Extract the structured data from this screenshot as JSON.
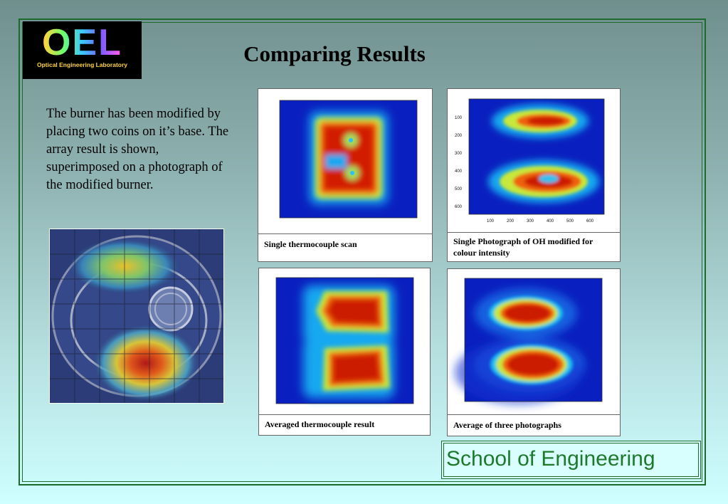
{
  "logo": {
    "word": "OEL",
    "subtitle": "Optical Engineering Laboratory"
  },
  "title": "Comparing Results",
  "intro": "The burner has been modified by placing two coins on it’s base. The array result is shown, superimposed on a photograph of the modified burner.",
  "figures": {
    "scan": {
      "caption": "Single thermocouple scan"
    },
    "photo": {
      "caption": "Single Photograph of OH modified for colour intensity",
      "y_ticks": [
        "100",
        "200",
        "300",
        "400",
        "500",
        "600"
      ],
      "x_ticks": [
        "100",
        "200",
        "300",
        "400",
        "500",
        "600"
      ]
    },
    "avg_scan": {
      "caption": "Averaged thermocouple result"
    },
    "avg_photo": {
      "caption": "Average of three photographs"
    }
  },
  "footer": "School of Engineering",
  "colors": {
    "frame": "#1d6b2c",
    "footer_text": "#1d7a2c",
    "heat_low": "#0a1fbf",
    "heat_high": "#cc1a00"
  }
}
